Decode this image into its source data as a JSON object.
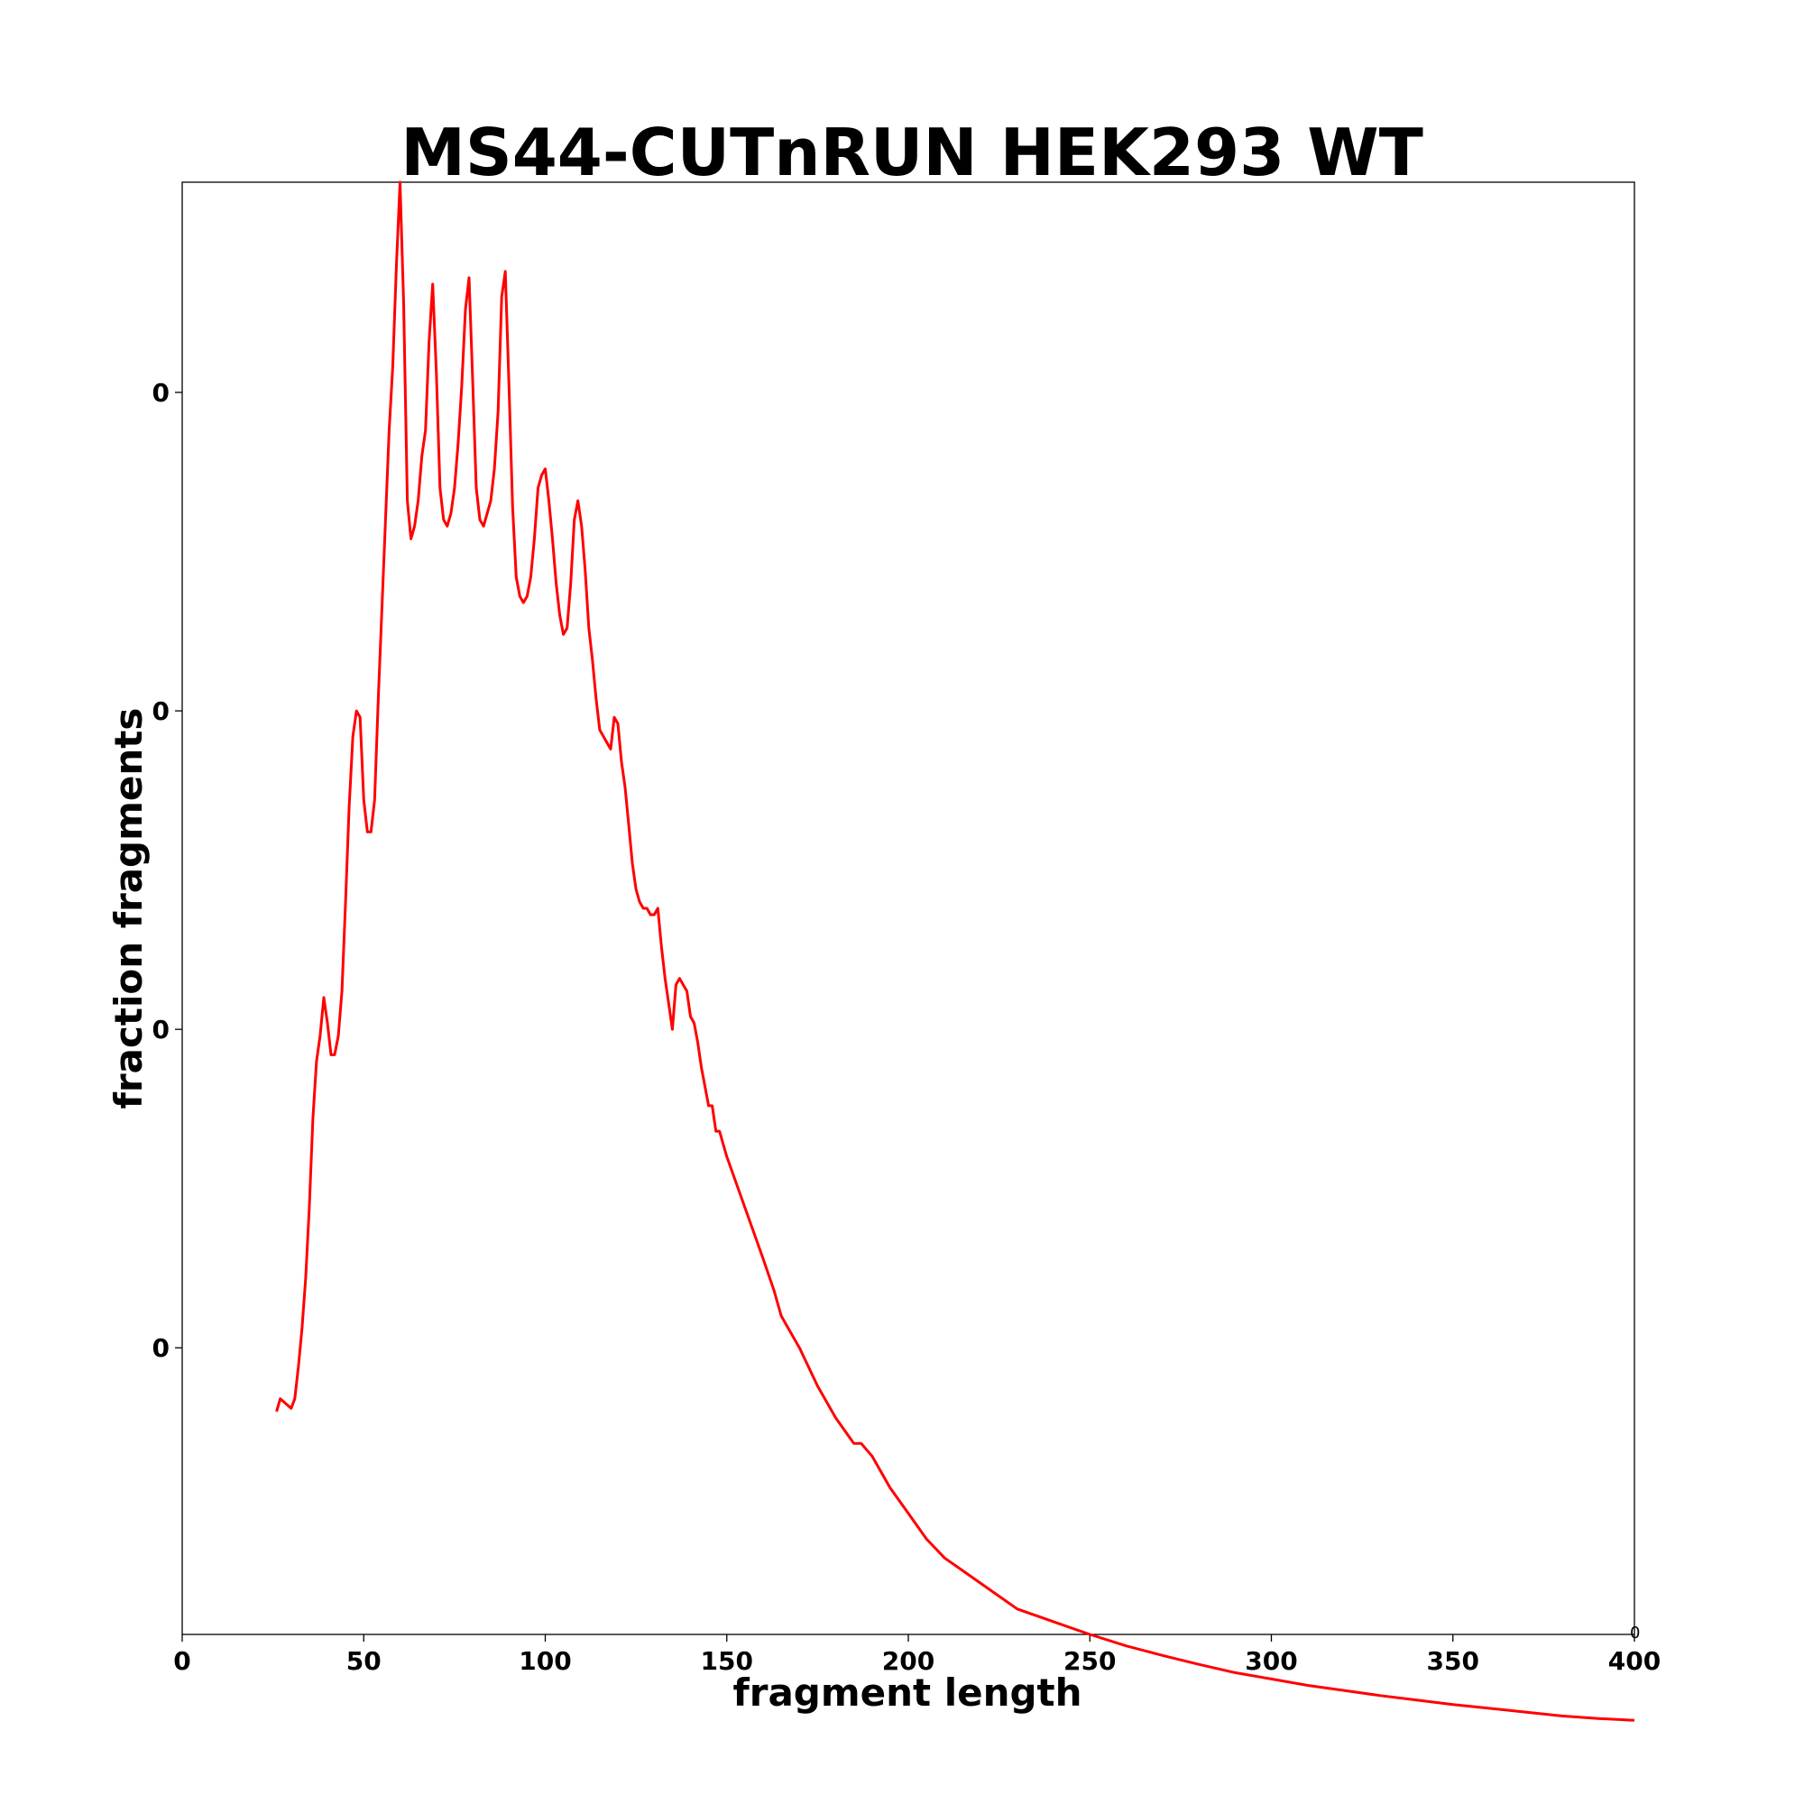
{
  "chart_data": {
    "type": "line",
    "title": "MS44-CUTnRUN HEK293 WT",
    "xlabel": "fragment length",
    "ylabel": "fraction fragments",
    "xlim": [
      0,
      400
    ],
    "ylim": [
      0,
      0.0228
    ],
    "grid": false,
    "x_ticks": [
      0,
      50,
      100,
      150,
      200,
      250,
      300,
      350,
      400
    ],
    "x_tick_labels": [
      "0",
      "50",
      "100",
      "150",
      "200",
      "250",
      "300",
      "350",
      "400"
    ],
    "y_ticks": [
      0.0045,
      0.0095,
      0.0145,
      0.0195
    ],
    "y_tick_labels": [
      "0",
      "0",
      "0",
      "0"
    ],
    "corner_label": "0",
    "series": [
      {
        "color": "#ff0000",
        "x": [
          26,
          27,
          28,
          29,
          30,
          31,
          32,
          33,
          34,
          35,
          36,
          37,
          38,
          39,
          40,
          41,
          42,
          43,
          44,
          45,
          46,
          47,
          48,
          49,
          50,
          51,
          52,
          53,
          54,
          55,
          56,
          57,
          58,
          59,
          60,
          61,
          62,
          63,
          64,
          65,
          66,
          67,
          68,
          69,
          70,
          71,
          72,
          73,
          74,
          75,
          76,
          77,
          78,
          79,
          80,
          81,
          82,
          83,
          84,
          85,
          86,
          87,
          88,
          89,
          90,
          91,
          92,
          93,
          94,
          95,
          96,
          97,
          98,
          99,
          100,
          101,
          102,
          103,
          104,
          105,
          106,
          107,
          108,
          109,
          110,
          111,
          112,
          113,
          114,
          115,
          116,
          117,
          118,
          119,
          120,
          121,
          122,
          123,
          124,
          125,
          126,
          127,
          128,
          129,
          130,
          131,
          132,
          133,
          134,
          135,
          136,
          137,
          138,
          139,
          140,
          141,
          142,
          143,
          144,
          145,
          146,
          147,
          148,
          149,
          150,
          155,
          160,
          163,
          165,
          167,
          170,
          175,
          180,
          185,
          187,
          190,
          195,
          200,
          205,
          210,
          215,
          220,
          225,
          230,
          240,
          250,
          260,
          270,
          280,
          290,
          300,
          310,
          320,
          330,
          340,
          350,
          360,
          370,
          380,
          390,
          400
        ],
        "y": [
          0.0035,
          0.0037,
          0.00365,
          0.0036,
          0.00355,
          0.0037,
          0.0042,
          0.0048,
          0.0056,
          0.0067,
          0.0081,
          0.009,
          0.0094,
          0.01,
          0.0096,
          0.0091,
          0.0091,
          0.0094,
          0.0101,
          0.0115,
          0.013,
          0.0141,
          0.0145,
          0.0144,
          0.0131,
          0.0126,
          0.0126,
          0.0131,
          0.0147,
          0.0161,
          0.0175,
          0.0189,
          0.0199,
          0.0215,
          0.0228,
          0.0209,
          0.0178,
          0.0172,
          0.0174,
          0.0178,
          0.0185,
          0.0189,
          0.0203,
          0.0212,
          0.0198,
          0.018,
          0.0175,
          0.0174,
          0.0176,
          0.018,
          0.0187,
          0.0196,
          0.0208,
          0.0213,
          0.0197,
          0.018,
          0.0175,
          0.0174,
          0.0176,
          0.0178,
          0.0183,
          0.0192,
          0.021,
          0.0214,
          0.0196,
          0.0177,
          0.0166,
          0.0163,
          0.0162,
          0.0163,
          0.0166,
          0.0172,
          0.018,
          0.0182,
          0.0183,
          0.0178,
          0.0172,
          0.0165,
          0.016,
          0.0157,
          0.0158,
          0.0165,
          0.0175,
          0.0178,
          0.0174,
          0.0167,
          0.0158,
          0.0153,
          0.0147,
          0.0142,
          0.0141,
          0.014,
          0.0139,
          0.0144,
          0.0143,
          0.0137,
          0.0133,
          0.0127,
          0.0121,
          0.0117,
          0.0115,
          0.0114,
          0.0114,
          0.0113,
          0.0113,
          0.0114,
          0.0108,
          0.0103,
          0.0099,
          0.0095,
          0.0102,
          0.0103,
          0.0102,
          0.0101,
          0.0097,
          0.0096,
          0.0093,
          0.0089,
          0.0086,
          0.0083,
          0.0083,
          0.0079,
          0.0079,
          0.0077,
          0.0075,
          0.0067,
          0.0059,
          0.0054,
          0.005,
          0.0048,
          0.0045,
          0.0039,
          0.0034,
          0.003,
          0.003,
          0.0028,
          0.0023,
          0.0019,
          0.0015,
          0.0012,
          0.001,
          0.0008,
          0.0006,
          0.0004,
          0.0002,
          0.0,
          -0.00018,
          -0.00033,
          -0.00047,
          -0.0006,
          -0.0007,
          -0.0008,
          -0.00088,
          -0.00096,
          -0.00103,
          -0.0011,
          -0.00116,
          -0.00122,
          -0.00128,
          -0.00132,
          -0.00135
        ]
      }
    ]
  }
}
